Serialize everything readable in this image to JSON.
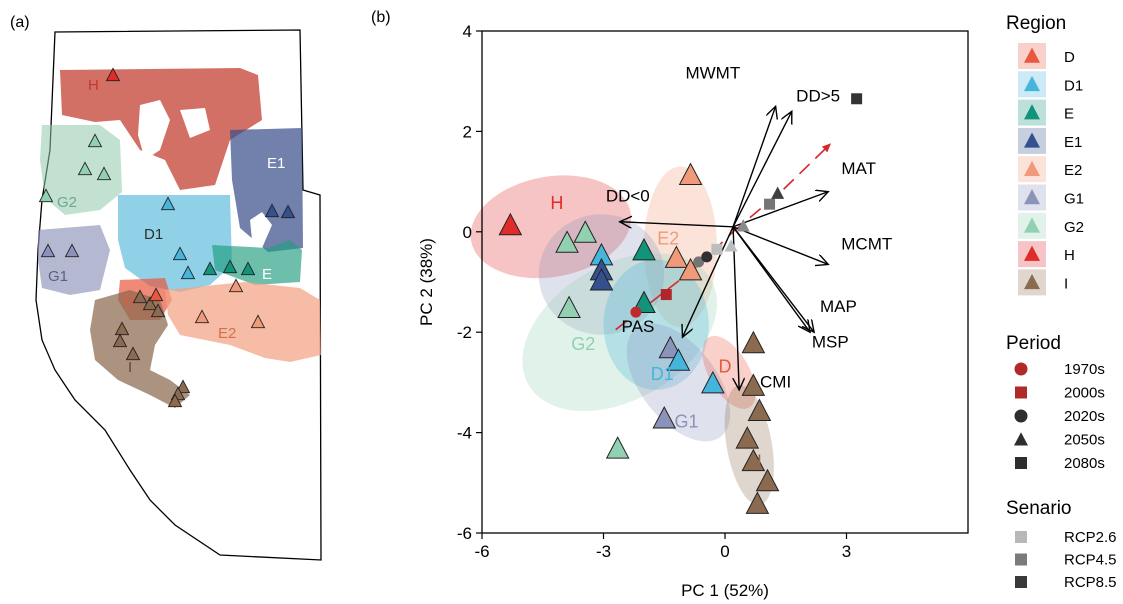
{
  "panel_a": {
    "label": "(a)",
    "regions": [
      {
        "code": "H",
        "color": "#c0392b"
      },
      {
        "code": "G2",
        "color": "#8fc9a9"
      },
      {
        "code": "E1",
        "color": "#3b4f8c"
      },
      {
        "code": "D1",
        "color": "#56b8dc"
      },
      {
        "code": "E",
        "color": "#1f9c80"
      },
      {
        "code": "G1",
        "color": "#8c93b8"
      },
      {
        "code": "D",
        "color": "#e8573f"
      },
      {
        "code": "E2",
        "color": "#f2a283"
      },
      {
        "code": "I",
        "color": "#8a6a4f"
      }
    ]
  },
  "chart_data": {
    "type": "scatter",
    "panel_label": "(b)",
    "title": "",
    "xlabel": "PC 1 (52%)",
    "ylabel": "PC 2 (38%)",
    "xlim": [
      -6,
      6
    ],
    "ylim": [
      -6,
      4
    ],
    "xticks": [
      -6,
      -3,
      0,
      3
    ],
    "yticks": [
      4,
      2,
      0,
      -2,
      -4,
      -6
    ],
    "grid": false,
    "regions": [
      {
        "code": "D",
        "color": "#e8573f"
      },
      {
        "code": "D1",
        "color": "#45b5dc"
      },
      {
        "code": "E",
        "color": "#11947a"
      },
      {
        "code": "E1",
        "color": "#34508f"
      },
      {
        "code": "E2",
        "color": "#f19a7b"
      },
      {
        "code": "G1",
        "color": "#8b93bb"
      },
      {
        "code": "G2",
        "color": "#92d0b2"
      },
      {
        "code": "H",
        "color": "#e02b2b"
      },
      {
        "code": "I",
        "color": "#8b6a50"
      }
    ],
    "ellipses": [
      {
        "region": "H",
        "cx": -4.3,
        "cy": 0.1,
        "rx": 2.0,
        "ry": 1.0,
        "angle": 10
      },
      {
        "region": "E2",
        "cx": -1.1,
        "cy": -0.3,
        "rx": 0.9,
        "ry": 1.6,
        "angle": 0
      },
      {
        "region": "G1",
        "cx": -3.05,
        "cy": -0.85,
        "rx": 1.55,
        "ry": 1.2,
        "angle": 0
      },
      {
        "region": "G2",
        "cx": -2.6,
        "cy": -2.0,
        "rx": 2.6,
        "ry": 1.35,
        "angle": 30
      },
      {
        "region": "D1",
        "cx": -1.7,
        "cy": -1.85,
        "rx": 1.3,
        "ry": 1.3,
        "angle": 0
      },
      {
        "region": "G1",
        "cx": -1.15,
        "cy": -3.0,
        "rx": 1.7,
        "ry": 0.75,
        "angle": -52
      },
      {
        "region": "D",
        "cx": 0.1,
        "cy": -2.8,
        "rx": 1.0,
        "ry": 0.4,
        "angle": -60
      },
      {
        "region": "I",
        "cx": 0.6,
        "cy": -4.25,
        "rx": 1.5,
        "ry": 0.45,
        "angle": -80
      }
    ],
    "region_labels": [
      {
        "text": "H",
        "x": -4.15,
        "y": 0.45,
        "region": "H"
      },
      {
        "text": "E2",
        "x": -1.4,
        "y": -0.25,
        "region": "E2"
      },
      {
        "text": "G2",
        "x": -3.5,
        "y": -2.35,
        "region": "G2"
      },
      {
        "text": "D1",
        "x": -1.55,
        "y": -2.95,
        "region": "D1"
      },
      {
        "text": "G1",
        "x": -0.95,
        "y": -3.9,
        "region": "G1"
      },
      {
        "text": "D",
        "x": 0.0,
        "y": -2.8,
        "region": "D"
      },
      {
        "text": "I",
        "x": 0.85,
        "y": -4.7,
        "region": "I"
      }
    ],
    "points": [
      {
        "x": -5.3,
        "y": 0.1,
        "region": "H",
        "marker": "triangle",
        "size": "large"
      },
      {
        "x": -3.9,
        "y": -0.25,
        "region": "G2",
        "marker": "triangle",
        "size": "large"
      },
      {
        "x": -3.45,
        "y": -0.05,
        "region": "G2",
        "marker": "triangle",
        "size": "large"
      },
      {
        "x": -3.85,
        "y": -1.55,
        "region": "G2",
        "marker": "triangle",
        "size": "large"
      },
      {
        "x": -2.65,
        "y": -4.35,
        "region": "G2",
        "marker": "triangle",
        "size": "large"
      },
      {
        "x": -3.05,
        "y": -0.5,
        "region": "D1",
        "marker": "triangle",
        "size": "large"
      },
      {
        "x": -3.05,
        "y": -0.8,
        "region": "E1",
        "marker": "triangle",
        "size": "large"
      },
      {
        "x": -3.05,
        "y": -1.0,
        "region": "E1",
        "marker": "triangle",
        "size": "large"
      },
      {
        "x": -2.0,
        "y": -0.4,
        "region": "E",
        "marker": "triangle",
        "size": "large"
      },
      {
        "x": -2.0,
        "y": -1.45,
        "region": "E",
        "marker": "triangle",
        "size": "large"
      },
      {
        "x": -1.2,
        "y": -0.55,
        "region": "E2",
        "marker": "triangle",
        "size": "large"
      },
      {
        "x": -0.85,
        "y": 1.1,
        "region": "E2",
        "marker": "triangle",
        "size": "large"
      },
      {
        "x": -0.85,
        "y": -0.8,
        "region": "E2",
        "marker": "triangle",
        "size": "large"
      },
      {
        "x": -1.35,
        "y": -2.35,
        "region": "G1",
        "marker": "triangle",
        "size": "large"
      },
      {
        "x": -1.5,
        "y": -3.75,
        "region": "G1",
        "marker": "triangle",
        "size": "large"
      },
      {
        "x": -1.15,
        "y": -2.6,
        "region": "D1",
        "marker": "triangle",
        "size": "large"
      },
      {
        "x": -0.3,
        "y": -3.05,
        "region": "D1",
        "marker": "triangle",
        "size": "large"
      },
      {
        "x": 0.7,
        "y": -2.25,
        "region": "I",
        "marker": "triangle",
        "size": "large"
      },
      {
        "x": 0.7,
        "y": -3.1,
        "region": "I",
        "marker": "triangle",
        "size": "large"
      },
      {
        "x": 0.85,
        "y": -3.6,
        "region": "I",
        "marker": "triangle",
        "size": "large"
      },
      {
        "x": 0.55,
        "y": -4.15,
        "region": "I",
        "marker": "triangle",
        "size": "large"
      },
      {
        "x": 0.7,
        "y": -4.6,
        "region": "I",
        "marker": "triangle",
        "size": "large"
      },
      {
        "x": 1.05,
        "y": -5.0,
        "region": "I",
        "marker": "triangle",
        "size": "large"
      },
      {
        "x": 0.8,
        "y": -5.45,
        "region": "I",
        "marker": "triangle",
        "size": "large"
      },
      {
        "x": -2.2,
        "y": -1.6,
        "marker": "circle",
        "color": "#c0282d"
      },
      {
        "x": -1.45,
        "y": -1.25,
        "marker": "square",
        "color": "#b0262a"
      },
      {
        "x": -0.65,
        "y": -0.6,
        "marker": "circle",
        "color": "#757575"
      },
      {
        "x": -0.45,
        "y": -0.5,
        "marker": "circle",
        "color": "#303030"
      },
      {
        "x": -0.2,
        "y": -0.35,
        "marker": "square",
        "color": "#bdbdbd"
      },
      {
        "x": 0.15,
        "y": -0.3,
        "marker": "triangle",
        "size": "small",
        "color": "#bdbdbd"
      },
      {
        "x": 0.45,
        "y": 0.1,
        "marker": "triangle",
        "size": "small",
        "color": "#8a8a8a"
      },
      {
        "x": 1.1,
        "y": 0.55,
        "marker": "square",
        "color": "#757575"
      },
      {
        "x": 1.3,
        "y": 0.75,
        "marker": "triangle",
        "size": "small",
        "color": "#404040"
      },
      {
        "x": 3.25,
        "y": 2.65,
        "marker": "square",
        "color": "#333333"
      }
    ],
    "trajectory": {
      "color": "#d8282a",
      "x": [
        -2.7,
        -0.7,
        0.2,
        1.45,
        2.6
      ],
      "y": [
        -1.95,
        -0.7,
        0.0,
        0.85,
        1.75
      ]
    },
    "loadings": [
      {
        "label": "MWMT",
        "x": 1.25,
        "y": 2.5,
        "lx": -0.3,
        "ly": 3.05
      },
      {
        "label": "DD>5",
        "x": 1.65,
        "y": 2.4,
        "lx": 2.3,
        "ly": 2.6
      },
      {
        "label": "MAT",
        "x": 2.55,
        "y": 0.8,
        "lx": 3.3,
        "ly": 1.15
      },
      {
        "label": "MCMT",
        "x": 2.55,
        "y": -0.65,
        "lx": 3.5,
        "ly": -0.35
      },
      {
        "label": "MAP",
        "x": 2.1,
        "y": -2.0,
        "lx": 2.8,
        "ly": -1.6
      },
      {
        "label": "MSP",
        "x": 2.2,
        "y": -2.0,
        "lx": 2.6,
        "ly": -2.3
      },
      {
        "label": "CMI",
        "x": 0.35,
        "y": -3.15,
        "lx": 1.25,
        "ly": -3.1
      },
      {
        "label": "PAS",
        "x": -1.05,
        "y": -2.1,
        "lx": -2.15,
        "ly": -2.0
      },
      {
        "label": "DD<0",
        "x": -2.6,
        "y": 0.2,
        "lx": -2.4,
        "ly": 0.6
      }
    ],
    "legend": {
      "placement": "right",
      "region_title": "Region",
      "region_entries": [
        "D",
        "D1",
        "E",
        "E1",
        "E2",
        "G1",
        "G2",
        "H",
        "I"
      ],
      "period_title": "Period",
      "period_entries": [
        {
          "label": "1970s",
          "marker": "circle",
          "color": "#b02a2a"
        },
        {
          "label": "2000s",
          "marker": "square",
          "color": "#b02a2a"
        },
        {
          "label": "2020s",
          "marker": "circle",
          "color": "#2e2e2e"
        },
        {
          "label": "2050s",
          "marker": "triangle",
          "color": "#2e2e2e"
        },
        {
          "label": "2080s",
          "marker": "square",
          "color": "#2e2e2e"
        }
      ],
      "scenario_title": "Senario",
      "scenario_entries": [
        {
          "label": "RCP2.6",
          "color": "#b8b8b8"
        },
        {
          "label": "RCP4.5",
          "color": "#7a7a7a"
        },
        {
          "label": "RCP8.5",
          "color": "#3a3a3a"
        }
      ]
    }
  }
}
